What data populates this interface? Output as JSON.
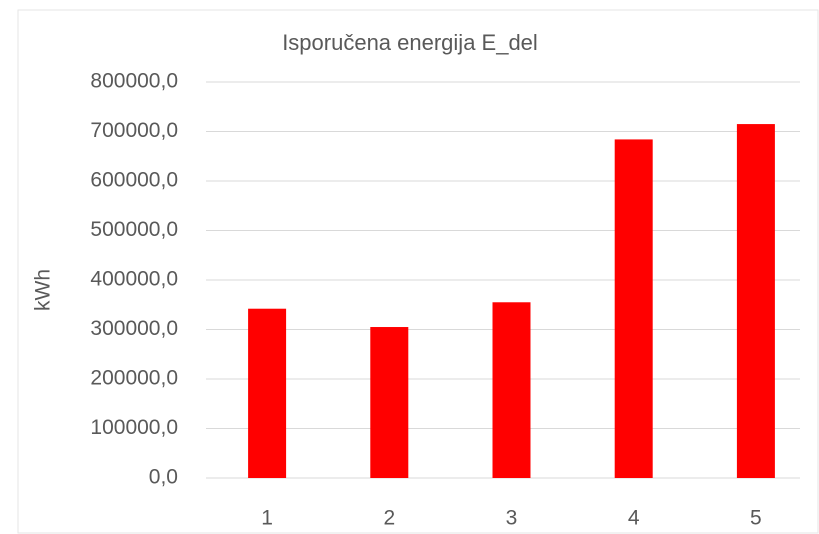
{
  "chart_data": {
    "type": "bar",
    "title": "Isporučena energija E_del",
    "y_label": "kWh",
    "categories": [
      "1",
      "2",
      "3",
      "4",
      "5"
    ],
    "values": [
      342000,
      305000,
      355000,
      684000,
      715000
    ],
    "color": "#ff0000",
    "ylim": [
      0,
      800000
    ],
    "yticks": [
      {
        "value": 0,
        "label": "0,0"
      },
      {
        "value": 100000,
        "label": "100000,0"
      },
      {
        "value": 200000,
        "label": "200000,0"
      },
      {
        "value": 300000,
        "label": "300000,0"
      },
      {
        "value": 400000,
        "label": "400000,0"
      },
      {
        "value": 500000,
        "label": "500000,0"
      },
      {
        "value": 600000,
        "label": "600000,0"
      },
      {
        "value": 700000,
        "label": "700000,0"
      },
      {
        "value": 800000,
        "label": "800000,0"
      }
    ],
    "grid": true
  }
}
